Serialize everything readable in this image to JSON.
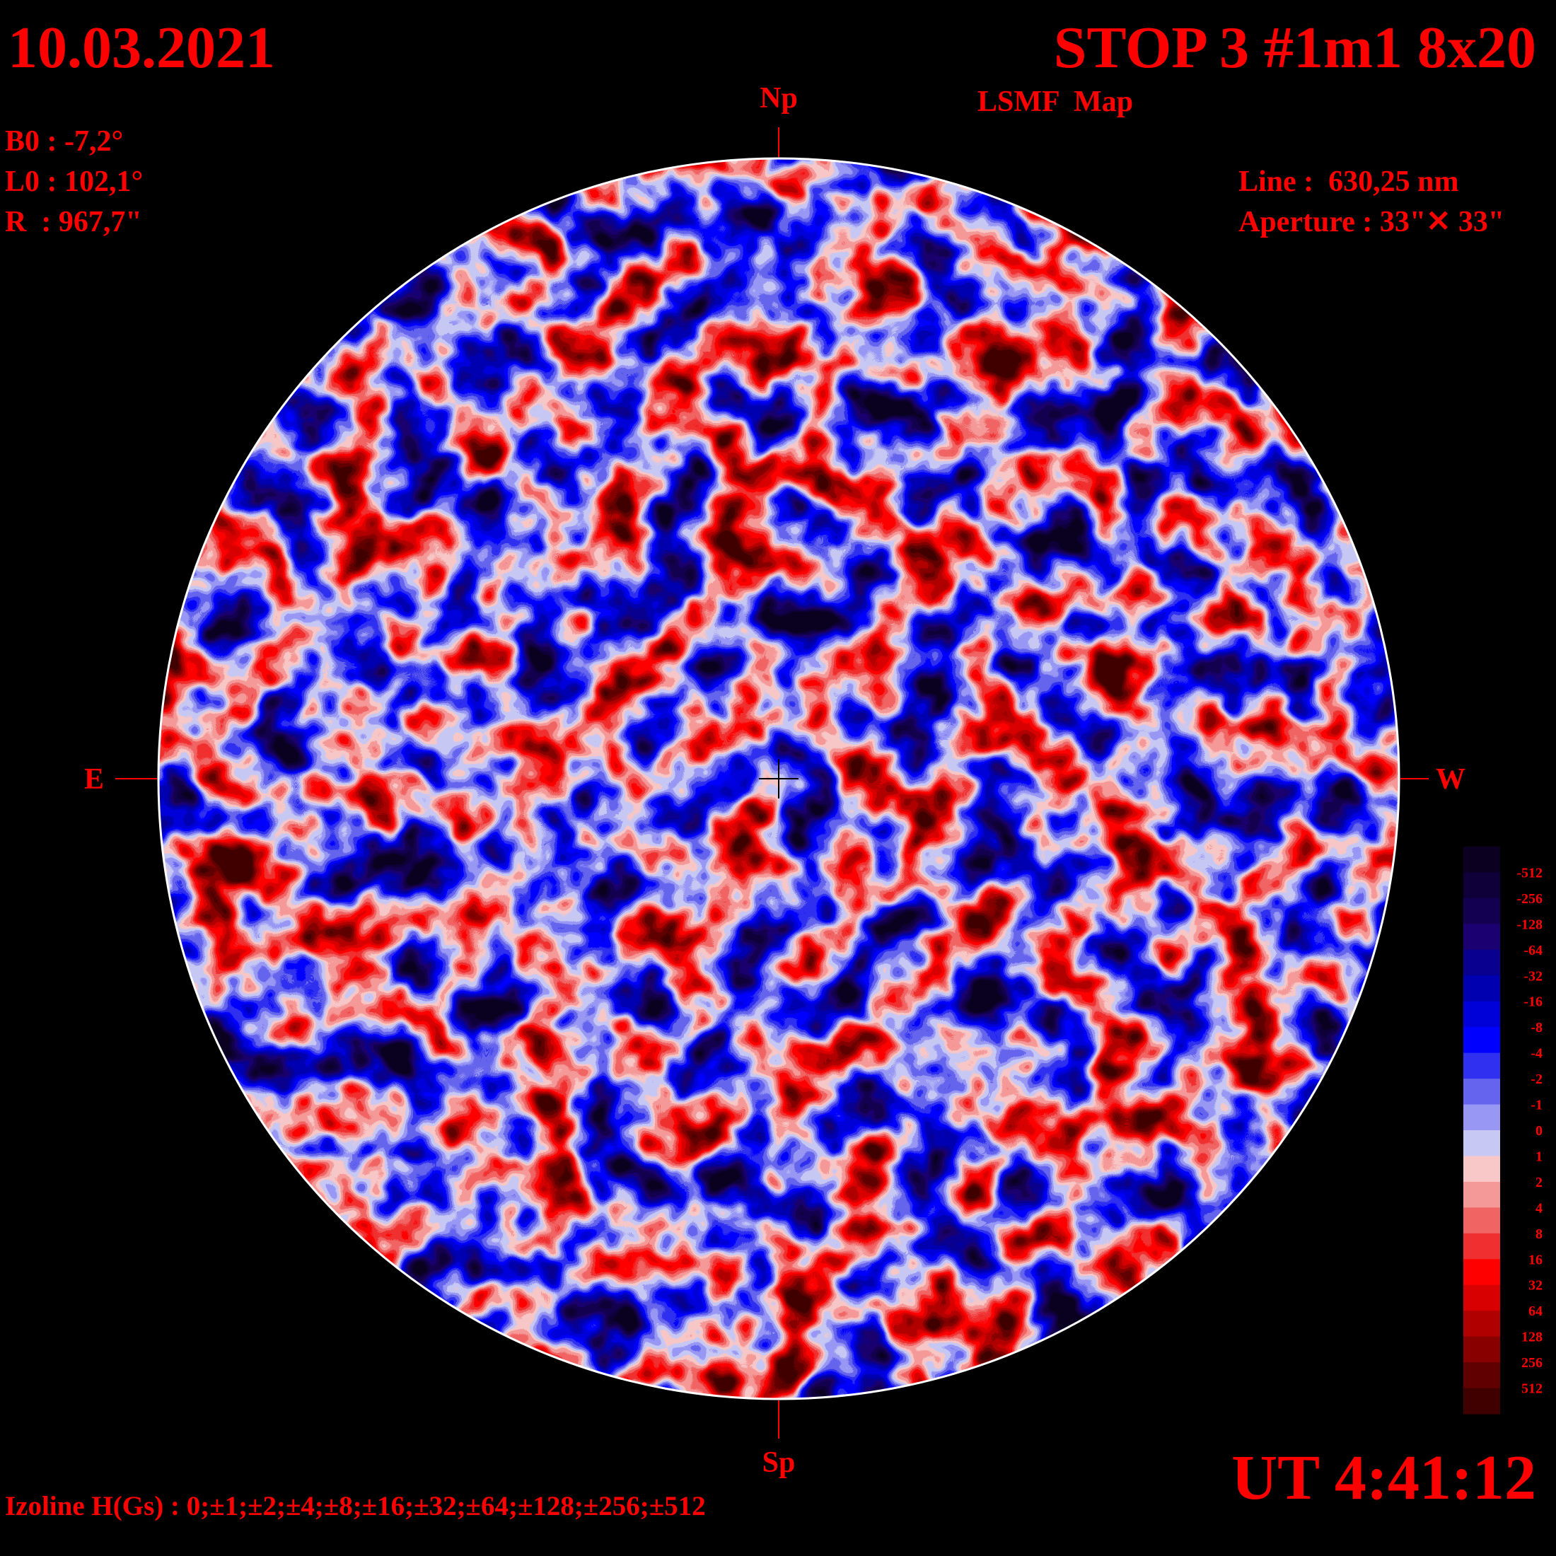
{
  "header": {
    "date": "10.03.2021",
    "title": "STOP 3 #1m1 8x20",
    "subtitle": "LSMF  Map"
  },
  "parameters": {
    "b0": "B0 : -7,2°",
    "l0": "L0 : 102,1°",
    "r": "R  : 967,7\""
  },
  "instrument": {
    "line": "Line :  630,25 nm",
    "aperture": "Aperture : 33\"✕ 33\""
  },
  "directions": {
    "north": "Np",
    "south": "Sp",
    "east": "E",
    "west": "W"
  },
  "time": "UT 4:41:12",
  "isolines": "Izoline H(Gs) : 0;±1;±2;±4;±8;±16;±32;±64;±128;±256;±512",
  "colorbar": {
    "levels": [
      -512,
      -256,
      -128,
      -64,
      -32,
      -16,
      -8,
      -4,
      -2,
      -1,
      0,
      1,
      2,
      4,
      8,
      16,
      32,
      64,
      128,
      256,
      512
    ],
    "colors": [
      "#0b0020",
      "#10003a",
      "#140050",
      "#1a0070",
      "#0a0090",
      "#0000b0",
      "#0000d8",
      "#0000ff",
      "#3030f0",
      "#6464ee",
      "#9898f4",
      "#c8c8f4",
      "#f8c8c8",
      "#f49898",
      "#f06464",
      "#f03030",
      "#ff0000",
      "#d80000",
      "#b00000",
      "#880000",
      "#600000",
      "#400000"
    ]
  }
}
